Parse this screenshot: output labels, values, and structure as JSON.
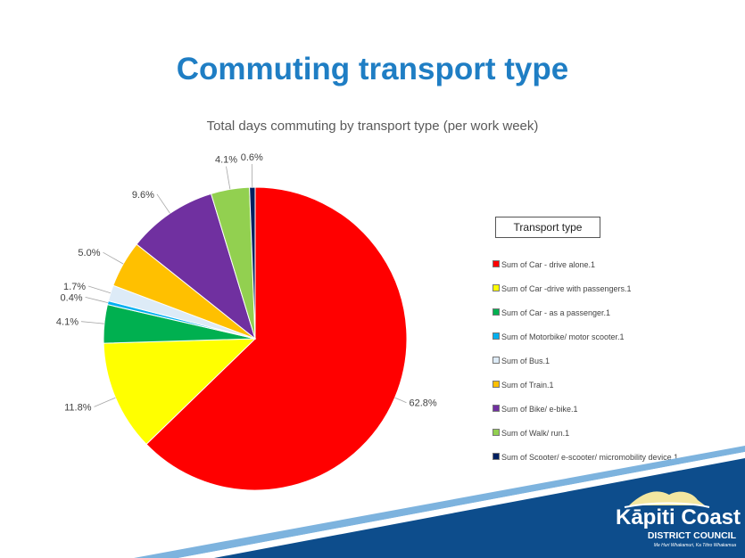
{
  "slide": {
    "title": "Commuting transport type"
  },
  "legend": {
    "title": "Transport type"
  },
  "logo": {
    "name": "Kāpiti Coast",
    "subtitle": "DISTRICT COUNCIL",
    "tagline": "Me Huri Whakamuri, Ka Titiro Whakamua"
  },
  "colors": {
    "title": "#1f7ec4",
    "footer_blue": "#0d4d8c"
  },
  "chart_data": {
    "type": "pie",
    "title": "Total days commuting by transport type (per work week)",
    "legend_position": "right",
    "slices": [
      {
        "name": "Sum of Car - drive alone.1",
        "value": 62.8,
        "label": "62.8%",
        "color": "#ff0000"
      },
      {
        "name": "Sum of Car -drive with passengers.1",
        "value": 11.8,
        "label": "11.8%",
        "color": "#ffff00"
      },
      {
        "name": "Sum of Car - as a passenger.1",
        "value": 4.1,
        "label": "4.1%",
        "color": "#00b050"
      },
      {
        "name": "Sum of Motorbike/ motor scooter.1",
        "value": 0.4,
        "label": "0.4%",
        "color": "#00b0f0"
      },
      {
        "name": "Sum of Bus.1",
        "value": 1.7,
        "label": "1.7%",
        "color": "#ddebf7"
      },
      {
        "name": "Sum of Train.1",
        "value": 5.0,
        "label": "5.0%",
        "color": "#ffc000"
      },
      {
        "name": "Sum of Bike/ e-bike.1",
        "value": 9.6,
        "label": "9.6%",
        "color": "#7030a0"
      },
      {
        "name": "Sum of Walk/ run.1",
        "value": 4.1,
        "label": "4.1%",
        "color": "#92d050"
      },
      {
        "name": "Sum of Scooter/ e-scooter/ micromobility device.1",
        "value": 0.6,
        "label": "0.6%",
        "color": "#002060"
      }
    ]
  }
}
